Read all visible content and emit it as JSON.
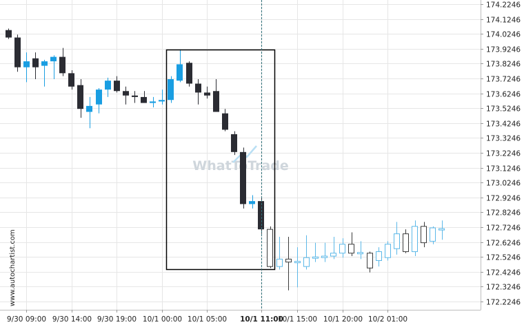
{
  "chart_data": {
    "type": "candlestick",
    "watermark": "WhatToTrade",
    "side_label": "www.autochartist.com",
    "ylim": [
      172.1846,
      174.2246
    ],
    "y_ticks": [
      "174.2246",
      "174.1246",
      "174.0246",
      "173.9246",
      "173.8246",
      "173.7246",
      "173.6246",
      "173.5246",
      "173.4246",
      "173.3246",
      "173.2246",
      "173.1246",
      "173.0246",
      "172.9246",
      "172.8246",
      "172.7246",
      "172.6246",
      "172.5246",
      "172.4246",
      "172.3246",
      "172.2246"
    ],
    "x_ticks": [
      {
        "label": "9/30 09:00",
        "index": 2,
        "bold": false
      },
      {
        "label": "9/30 14:00",
        "index": 7,
        "bold": false
      },
      {
        "label": "9/30 19:00",
        "index": 12,
        "bold": false
      },
      {
        "label": "10/1 00:00",
        "index": 17,
        "bold": false
      },
      {
        "label": "10/1 05:00",
        "index": 22,
        "bold": false
      },
      {
        "label": "10/1 11:00",
        "index": 28,
        "bold": true
      },
      {
        "label": "10/1 15:00",
        "index": 32,
        "bold": false
      },
      {
        "label": "10/1 20:00",
        "index": 37,
        "bold": false
      },
      {
        "label": "10/2 01:00",
        "index": 42,
        "bold": false
      }
    ],
    "marker_index": 28,
    "pattern_box": {
      "start_index": 18,
      "end_index": 29,
      "high": 173.92,
      "low": 172.44
    },
    "colors": {
      "bull_past": "#1a9ee2",
      "bear_past": "#2b2c33",
      "bull_future": "#5bb8e8",
      "bear_future": "#3a3a3a",
      "grid": "#e6e6e6",
      "box": "#000000",
      "marker": "#2e6f78"
    },
    "candles": [
      {
        "o": 174.05,
        "h": 174.06,
        "l": 173.99,
        "c": 174.0
      },
      {
        "o": 174.0,
        "h": 174.02,
        "l": 173.77,
        "c": 173.8
      },
      {
        "o": 173.8,
        "h": 173.9,
        "l": 173.7,
        "c": 173.84
      },
      {
        "o": 173.86,
        "h": 173.9,
        "l": 173.72,
        "c": 173.8
      },
      {
        "o": 173.81,
        "h": 173.85,
        "l": 173.67,
        "c": 173.84
      },
      {
        "o": 173.84,
        "h": 173.88,
        "l": 173.72,
        "c": 173.87
      },
      {
        "o": 173.87,
        "h": 173.93,
        "l": 173.74,
        "c": 173.76
      },
      {
        "o": 173.76,
        "h": 173.78,
        "l": 173.65,
        "c": 173.67
      },
      {
        "o": 173.68,
        "h": 173.72,
        "l": 173.46,
        "c": 173.52
      },
      {
        "o": 173.5,
        "h": 173.6,
        "l": 173.39,
        "c": 173.54
      },
      {
        "o": 173.55,
        "h": 173.66,
        "l": 173.49,
        "c": 173.65
      },
      {
        "o": 173.65,
        "h": 173.73,
        "l": 173.6,
        "c": 173.71
      },
      {
        "o": 173.71,
        "h": 173.74,
        "l": 173.63,
        "c": 173.64
      },
      {
        "o": 173.64,
        "h": 173.67,
        "l": 173.55,
        "c": 173.61
      },
      {
        "o": 173.61,
        "h": 173.64,
        "l": 173.56,
        "c": 173.6
      },
      {
        "o": 173.6,
        "h": 173.64,
        "l": 173.56,
        "c": 173.56
      },
      {
        "o": 173.56,
        "h": 173.6,
        "l": 173.53,
        "c": 173.57
      },
      {
        "o": 173.57,
        "h": 173.65,
        "l": 173.55,
        "c": 173.58
      },
      {
        "o": 173.58,
        "h": 173.74,
        "l": 173.56,
        "c": 173.72
      },
      {
        "o": 173.71,
        "h": 173.92,
        "l": 173.7,
        "c": 173.82
      },
      {
        "o": 173.83,
        "h": 173.84,
        "l": 173.67,
        "c": 173.69
      },
      {
        "o": 173.69,
        "h": 173.72,
        "l": 173.55,
        "c": 173.63
      },
      {
        "o": 173.63,
        "h": 173.67,
        "l": 173.59,
        "c": 173.61
      },
      {
        "o": 173.64,
        "h": 173.72,
        "l": 173.51,
        "c": 173.5
      },
      {
        "o": 173.49,
        "h": 173.52,
        "l": 173.37,
        "c": 173.38
      },
      {
        "o": 173.35,
        "h": 173.37,
        "l": 173.21,
        "c": 173.23
      },
      {
        "o": 173.23,
        "h": 173.26,
        "l": 172.85,
        "c": 172.88
      },
      {
        "o": 172.88,
        "h": 172.94,
        "l": 172.85,
        "c": 172.9
      },
      {
        "o": 172.9,
        "h": 172.93,
        "l": 172.68,
        "c": 172.71
      },
      {
        "o": 172.71,
        "h": 172.73,
        "l": 172.45,
        "c": 172.46
      },
      {
        "o": 172.46,
        "h": 172.66,
        "l": 172.44,
        "c": 172.51
      },
      {
        "o": 172.51,
        "h": 172.66,
        "l": 172.3,
        "c": 172.49
      },
      {
        "o": 172.49,
        "h": 172.59,
        "l": 172.32,
        "c": 172.49
      },
      {
        "o": 172.46,
        "h": 172.67,
        "l": 172.44,
        "c": 172.52
      },
      {
        "o": 172.52,
        "h": 172.62,
        "l": 172.49,
        "c": 172.52
      },
      {
        "o": 172.52,
        "h": 172.62,
        "l": 172.49,
        "c": 172.53
      },
      {
        "o": 172.53,
        "h": 172.66,
        "l": 172.51,
        "c": 172.55
      },
      {
        "o": 172.55,
        "h": 172.65,
        "l": 172.52,
        "c": 172.61
      },
      {
        "o": 172.61,
        "h": 172.69,
        "l": 172.53,
        "c": 172.55
      },
      {
        "o": 172.55,
        "h": 172.63,
        "l": 172.51,
        "c": 172.55
      },
      {
        "o": 172.55,
        "h": 172.56,
        "l": 172.42,
        "c": 172.45
      },
      {
        "o": 172.5,
        "h": 172.59,
        "l": 172.46,
        "c": 172.56
      },
      {
        "o": 172.52,
        "h": 172.63,
        "l": 172.5,
        "c": 172.61
      },
      {
        "o": 172.58,
        "h": 172.76,
        "l": 172.54,
        "c": 172.68
      },
      {
        "o": 172.68,
        "h": 172.71,
        "l": 172.55,
        "c": 172.56
      },
      {
        "o": 172.56,
        "h": 172.77,
        "l": 172.53,
        "c": 172.73
      },
      {
        "o": 172.73,
        "h": 172.76,
        "l": 172.59,
        "c": 172.62
      },
      {
        "o": 172.63,
        "h": 172.73,
        "l": 172.61,
        "c": 172.72
      },
      {
        "o": 172.71,
        "h": 172.77,
        "l": 172.64,
        "c": 172.71
      }
    ]
  }
}
